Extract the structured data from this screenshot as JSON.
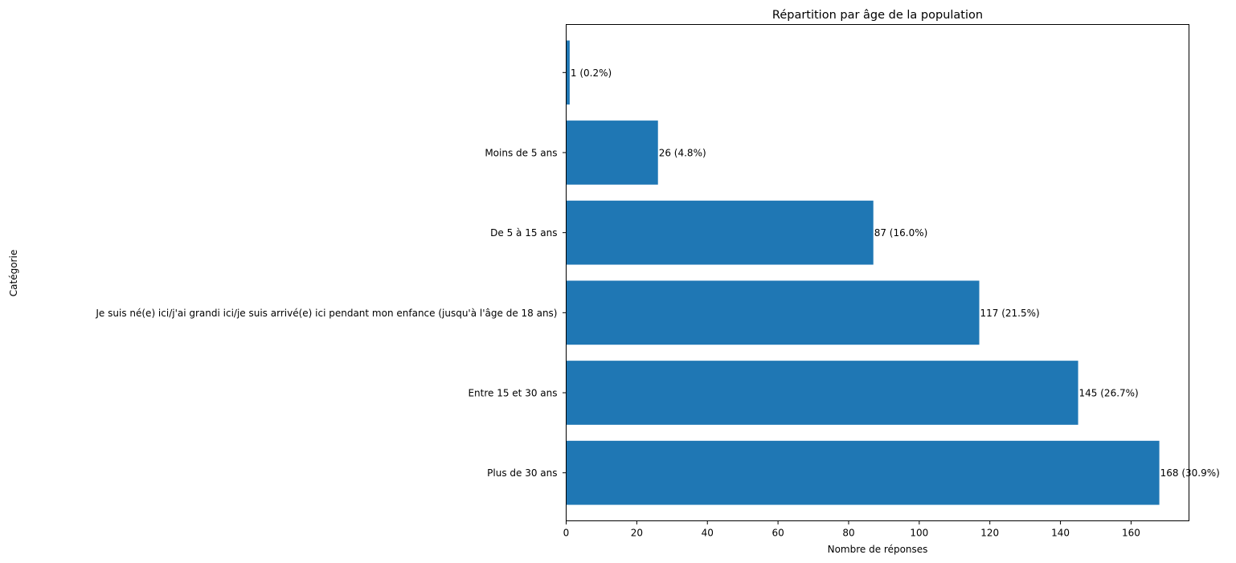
{
  "chart_data": {
    "type": "bar",
    "orientation": "horizontal",
    "title": "Répartition par âge de la population",
    "xlabel": "Nombre de réponses",
    "ylabel": "Catégorie",
    "categories": [
      "Plus de 30 ans",
      "Entre 15 et 30 ans",
      "Je suis né(e) ici/j'ai grandi ici/je suis arrivé(e) ici pendant mon enfance (jusqu'à l'âge de 18 ans)",
      "De 5 à 15 ans",
      "Moins de 5 ans",
      ""
    ],
    "values": [
      168,
      145,
      117,
      87,
      26,
      1
    ],
    "value_labels": [
      "168 (30.9%)",
      "145 (26.7%)",
      "117 (21.5%)",
      "87 (16.0%)",
      "26 (4.8%)",
      "1 (0.2%)"
    ],
    "xlim": [
      0,
      176.4
    ],
    "xticks": [
      0,
      20,
      40,
      60,
      80,
      100,
      120,
      140,
      160
    ],
    "grid": false,
    "legend": "none",
    "bar_color": "#1f77b4"
  }
}
